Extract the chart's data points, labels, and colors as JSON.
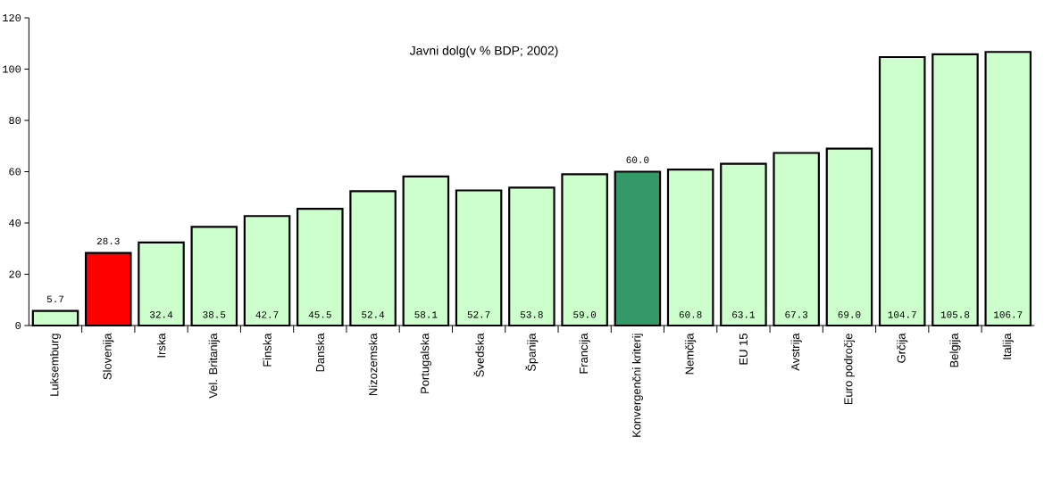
{
  "chart_data": {
    "type": "bar",
    "title": "Javni dolg(v % BDP; 2002)",
    "categories": [
      "Luksemburg",
      "Slovenija",
      "Irska",
      "Vel. Britanija",
      "Finska",
      "Danska",
      "Nizozemska",
      "Portugalska",
      "Švedska",
      "Španija",
      "Francija",
      "Konvergenčni kriterij",
      "Nemčija",
      "EU 15",
      "Avstrija",
      "Euro področje",
      "Grčija",
      "Belgija",
      "Italija"
    ],
    "values": [
      5.7,
      28.3,
      32.4,
      38.5,
      42.7,
      45.5,
      52.4,
      58.1,
      52.7,
      53.8,
      59.0,
      60.0,
      60.8,
      63.1,
      67.3,
      69.0,
      104.7,
      105.8,
      106.7
    ],
    "value_labels": [
      "5.7",
      "28.3",
      "32.4",
      "38.5",
      "42.7",
      "45.5",
      "52.4",
      "58.1",
      "52.7",
      "53.8",
      "59.0",
      "60.0",
      "60.8",
      "63.1",
      "67.3",
      "69.0",
      "104.7",
      "105.8",
      "106.7"
    ],
    "colors": [
      "#ccffcc",
      "#ff0000",
      "#ccffcc",
      "#ccffcc",
      "#ccffcc",
      "#ccffcc",
      "#ccffcc",
      "#ccffcc",
      "#ccffcc",
      "#ccffcc",
      "#ccffcc",
      "#339966",
      "#ccffcc",
      "#ccffcc",
      "#ccffcc",
      "#ccffcc",
      "#ccffcc",
      "#ccffcc",
      "#ccffcc"
    ],
    "ylim": [
      0,
      120
    ],
    "yticks": [
      0,
      20,
      40,
      60,
      80,
      100,
      120
    ]
  }
}
